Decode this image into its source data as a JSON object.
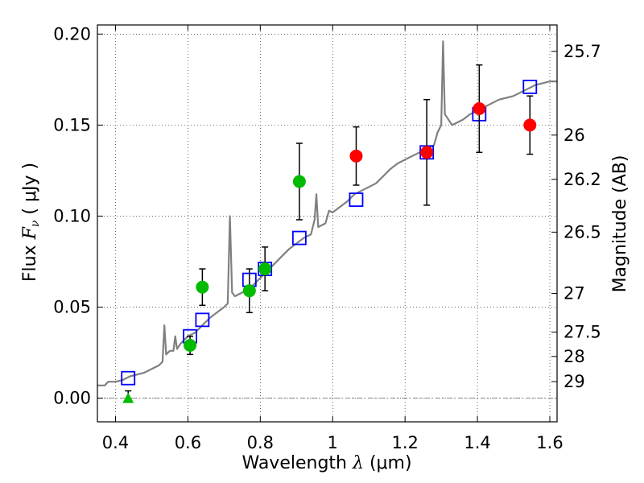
{
  "chart_data": {
    "type": "scatter",
    "xlabel": {
      "prefix": "Wavelength",
      "symbol": "λ",
      "unit": "(μm)"
    },
    "ylabel": {
      "prefix": "Flux",
      "symbol": "F",
      "subscript": "ν",
      "unit": "( μJy )"
    },
    "y2label": "Magnitude (AB)",
    "xlim": [
      0.35,
      1.62
    ],
    "ylim": [
      -0.013,
      0.205
    ],
    "grid": true,
    "x_ticks": [
      {
        "value": 0.4,
        "label": "0.4"
      },
      {
        "value": 0.6,
        "label": "0.6"
      },
      {
        "value": 0.8,
        "label": "0.8"
      },
      {
        "value": 1.0,
        "label": "1"
      },
      {
        "value": 1.2,
        "label": "1.2"
      },
      {
        "value": 1.4,
        "label": "1.4"
      },
      {
        "value": 1.6,
        "label": "1.6"
      }
    ],
    "y_ticks": [
      {
        "value": 0.0,
        "label": "0.00"
      },
      {
        "value": 0.05,
        "label": "0.05"
      },
      {
        "value": 0.1,
        "label": "0.10"
      },
      {
        "value": 0.15,
        "label": "0.15"
      },
      {
        "value": 0.2,
        "label": "0.20"
      }
    ],
    "y2_ticks": [
      {
        "label": "25.7",
        "flux": 0.1905
      },
      {
        "label": "26",
        "flux": 0.1445
      },
      {
        "label": "26.2",
        "flux": 0.1202
      },
      {
        "label": "26.5",
        "flux": 0.0912
      },
      {
        "label": "27",
        "flux": 0.0575
      },
      {
        "label": "27.5",
        "flux": 0.0363
      },
      {
        "label": "28",
        "flux": 0.0229
      },
      {
        "label": "29",
        "flux": 0.0091
      }
    ],
    "model_spectrum": {
      "color": "#808080",
      "points": [
        [
          0.35,
          0.007
        ],
        [
          0.37,
          0.007
        ],
        [
          0.38,
          0.009
        ],
        [
          0.4,
          0.009
        ],
        [
          0.42,
          0.01
        ],
        [
          0.44,
          0.012
        ],
        [
          0.46,
          0.013
        ],
        [
          0.48,
          0.014
        ],
        [
          0.5,
          0.016
        ],
        [
          0.52,
          0.018
        ],
        [
          0.53,
          0.02
        ],
        [
          0.535,
          0.04
        ],
        [
          0.54,
          0.024
        ],
        [
          0.55,
          0.026
        ],
        [
          0.56,
          0.026
        ],
        [
          0.565,
          0.034
        ],
        [
          0.57,
          0.027
        ],
        [
          0.58,
          0.03
        ],
        [
          0.59,
          0.032
        ],
        [
          0.6,
          0.034
        ],
        [
          0.62,
          0.036
        ],
        [
          0.64,
          0.04
        ],
        [
          0.66,
          0.044
        ],
        [
          0.68,
          0.047
        ],
        [
          0.7,
          0.05
        ],
        [
          0.71,
          0.052
        ],
        [
          0.716,
          0.1
        ],
        [
          0.722,
          0.058
        ],
        [
          0.73,
          0.056
        ],
        [
          0.75,
          0.058
        ],
        [
          0.77,
          0.06
        ],
        [
          0.79,
          0.064
        ],
        [
          0.8,
          0.066
        ],
        [
          0.82,
          0.07
        ],
        [
          0.84,
          0.074
        ],
        [
          0.86,
          0.078
        ],
        [
          0.88,
          0.082
        ],
        [
          0.9,
          0.085
        ],
        [
          0.92,
          0.088
        ],
        [
          0.94,
          0.09
        ],
        [
          0.95,
          0.098
        ],
        [
          0.955,
          0.112
        ],
        [
          0.96,
          0.094
        ],
        [
          0.97,
          0.095
        ],
        [
          0.98,
          0.096
        ],
        [
          0.99,
          0.103
        ],
        [
          1.0,
          0.102
        ],
        [
          1.02,
          0.105
        ],
        [
          1.04,
          0.108
        ],
        [
          1.06,
          0.112
        ],
        [
          1.08,
          0.114
        ],
        [
          1.1,
          0.116
        ],
        [
          1.12,
          0.118
        ],
        [
          1.14,
          0.122
        ],
        [
          1.16,
          0.126
        ],
        [
          1.18,
          0.129
        ],
        [
          1.2,
          0.131
        ],
        [
          1.22,
          0.133
        ],
        [
          1.24,
          0.135
        ],
        [
          1.26,
          0.137
        ],
        [
          1.28,
          0.139
        ],
        [
          1.29,
          0.146
        ],
        [
          1.3,
          0.15
        ],
        [
          1.305,
          0.196
        ],
        [
          1.31,
          0.156
        ],
        [
          1.33,
          0.15
        ],
        [
          1.36,
          0.153
        ],
        [
          1.38,
          0.156
        ],
        [
          1.4,
          0.158
        ],
        [
          1.42,
          0.16
        ],
        [
          1.44,
          0.162
        ],
        [
          1.46,
          0.164
        ],
        [
          1.48,
          0.165
        ],
        [
          1.5,
          0.166
        ],
        [
          1.52,
          0.168
        ],
        [
          1.54,
          0.17
        ],
        [
          1.56,
          0.172
        ],
        [
          1.58,
          0.173
        ],
        [
          1.6,
          0.174
        ],
        [
          1.62,
          0.174
        ]
      ]
    },
    "series": [
      {
        "marker": "open-square",
        "color": "#0000ff",
        "points": [
          {
            "x": 0.435,
            "y": 0.011
          },
          {
            "x": 0.606,
            "y": 0.034
          },
          {
            "x": 0.64,
            "y": 0.043
          },
          {
            "x": 0.77,
            "y": 0.065
          },
          {
            "x": 0.813,
            "y": 0.071
          },
          {
            "x": 0.908,
            "y": 0.088
          },
          {
            "x": 1.065,
            "y": 0.109
          },
          {
            "x": 1.26,
            "y": 0.135
          },
          {
            "x": 1.405,
            "y": 0.156
          },
          {
            "x": 1.545,
            "y": 0.171
          }
        ]
      },
      {
        "marker": "filled-circle",
        "color": "#00bb00",
        "points": [
          {
            "x": 0.606,
            "y": 0.029,
            "err": 0.005
          },
          {
            "x": 0.64,
            "y": 0.061,
            "err": 0.01
          },
          {
            "x": 0.77,
            "y": 0.059,
            "err": 0.012
          },
          {
            "x": 0.813,
            "y": 0.071,
            "err": 0.012
          },
          {
            "x": 0.908,
            "y": 0.119,
            "err": 0.021
          }
        ]
      },
      {
        "marker": "filled-triangle",
        "color": "#00bb00",
        "points": [
          {
            "x": 0.435,
            "y": 0.0,
            "err_up": 0.004
          }
        ]
      },
      {
        "marker": "filled-circle",
        "color": "#ff0000",
        "points": [
          {
            "x": 1.065,
            "y": 0.133,
            "err": 0.016
          },
          {
            "x": 1.26,
            "y": 0.135,
            "err": 0.029
          },
          {
            "x": 1.405,
            "y": 0.159,
            "err": 0.024
          },
          {
            "x": 1.545,
            "y": 0.15,
            "err": 0.016
          }
        ]
      }
    ]
  }
}
